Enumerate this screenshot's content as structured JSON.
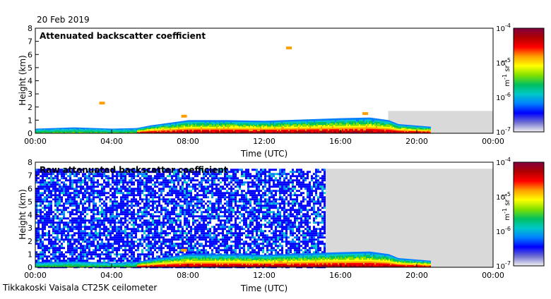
{
  "header": {
    "date": "20 Feb 2019"
  },
  "footer": {
    "instrument": "Tikkakoski Vaisala CT25K ceilometer"
  },
  "colorbar": {
    "stops": [
      "#f2f2f2",
      "#7070d0",
      "#0000ff",
      "#0080ff",
      "#00c8c8",
      "#00c060",
      "#80e000",
      "#ffff00",
      "#ffa000",
      "#ff0000",
      "#b00000",
      "#800040"
    ],
    "unit_main": "m",
    "unit_exp1": "-1",
    "unit_mid": " sr",
    "unit_exp2": "-1"
  },
  "colors": {
    "missing": "#d9d9d9",
    "frame": "#000000"
  },
  "chart_data": [
    {
      "type": "heatmap",
      "title": "Attenuated backscatter coefficient",
      "xlabel": "Time (UTC)",
      "ylabel": "Height (km)",
      "xlim_hours": [
        0,
        24
      ],
      "ylim_km": [
        0,
        8
      ],
      "xticks": [
        "00:00",
        "04:00",
        "08:00",
        "12:00",
        "16:00",
        "20:00",
        "00:00"
      ],
      "yticks": [
        "0",
        "1",
        "2",
        "3",
        "4",
        "5",
        "6",
        "7",
        "8"
      ],
      "colorbar_ticks": [
        {
          "base": "10",
          "exp": "-4",
          "log10": -4
        },
        {
          "base": "10",
          "exp": "-5",
          "log10": -5
        },
        {
          "base": "10",
          "exp": "-6",
          "log10": -6
        },
        {
          "base": "10",
          "exp": "-7",
          "log10": -7
        }
      ],
      "colorbar_range_log10": [
        -7,
        -4
      ],
      "data_end_hour": 20.7,
      "missing_region": {
        "from_hour": 18.5,
        "to_hour": 24,
        "top_km": 1.7
      },
      "boundary_layer_top_km": [
        [
          0,
          0.35
        ],
        [
          2,
          0.45
        ],
        [
          4,
          0.35
        ],
        [
          5.3,
          0.4
        ],
        [
          6,
          0.6
        ],
        [
          7,
          0.8
        ],
        [
          8,
          1.0
        ],
        [
          10,
          1.0
        ],
        [
          12,
          0.95
        ],
        [
          14,
          1.05
        ],
        [
          16,
          1.15
        ],
        [
          17.5,
          1.2
        ],
        [
          18.5,
          1.0
        ],
        [
          19,
          0.7
        ],
        [
          20.7,
          0.5
        ]
      ],
      "noise_top_km": 0,
      "features": [
        {
          "name": "cloud",
          "hour": 3.5,
          "height_km": 2.3
        },
        {
          "name": "cloud",
          "hour": 7.8,
          "height_km": 1.3
        },
        {
          "name": "cloud",
          "hour": 13.3,
          "height_km": 6.5
        },
        {
          "name": "cloud",
          "hour": 17.3,
          "height_km": 1.5
        }
      ]
    },
    {
      "type": "heatmap",
      "title": "Raw attenuated backscatter coefficient",
      "xlabel": "Time (UTC)",
      "ylabel": "Height (km)",
      "xlim_hours": [
        0,
        24
      ],
      "ylim_km": [
        0,
        8
      ],
      "xticks": [
        "00:00",
        "04:00",
        "08:00",
        "12:00",
        "16:00",
        "20:00",
        "00:00"
      ],
      "yticks": [
        "0",
        "1",
        "2",
        "3",
        "4",
        "5",
        "6",
        "7",
        "8"
      ],
      "colorbar_ticks": [
        {
          "base": "10",
          "exp": "-4",
          "log10": -4
        },
        {
          "base": "10",
          "exp": "-5",
          "log10": -5
        },
        {
          "base": "10",
          "exp": "-6",
          "log10": -6
        },
        {
          "base": "10",
          "exp": "-7",
          "log10": -7
        }
      ],
      "colorbar_range_log10": [
        -7,
        -4
      ],
      "data_end_hour": 20.7,
      "missing_region": {
        "from_hour": 15.2,
        "to_hour": 24,
        "top_km": 7.5
      },
      "boundary_layer_top_km": [
        [
          0,
          0.35
        ],
        [
          2,
          0.45
        ],
        [
          4,
          0.35
        ],
        [
          5.3,
          0.4
        ],
        [
          6,
          0.6
        ],
        [
          7,
          0.8
        ],
        [
          8,
          1.0
        ],
        [
          10,
          1.0
        ],
        [
          12,
          0.95
        ],
        [
          14,
          1.05
        ],
        [
          16,
          1.15
        ],
        [
          17.5,
          1.2
        ],
        [
          18.5,
          1.0
        ],
        [
          19,
          0.7
        ],
        [
          20.7,
          0.5
        ]
      ],
      "noise_top_km": 7.5,
      "features": [
        {
          "name": "cloud",
          "hour": 7.8,
          "height_km": 1.3
        }
      ]
    }
  ]
}
